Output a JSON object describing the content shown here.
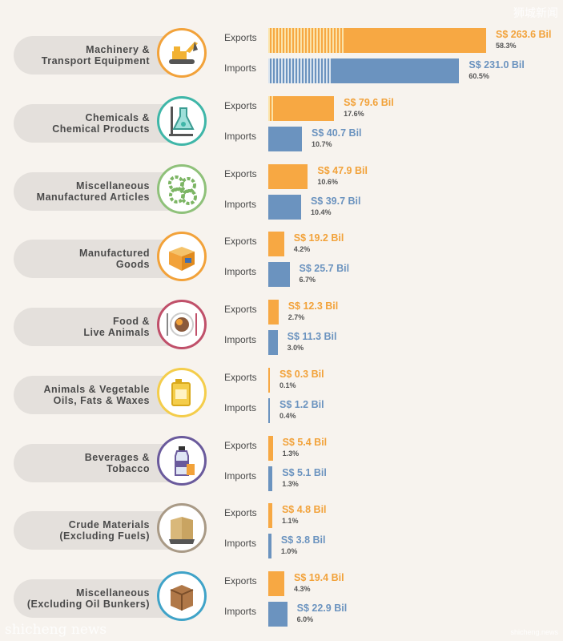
{
  "watermarks": {
    "top_right": "狮城新闻",
    "bottom_left": "shicheng news",
    "bottom_right": "shicheng.news"
  },
  "labels": {
    "exports": "Exports",
    "imports": "Imports"
  },
  "colors": {
    "exports": "#f7a843",
    "imports": "#6b93bf",
    "background": "#f7f3ee"
  },
  "chart_data": {
    "type": "bar",
    "orientation": "horizontal",
    "unit": "S$ Bil",
    "series_names": [
      "Exports",
      "Imports"
    ],
    "rows": [
      {
        "category": "Machinery &\nTransport Equipment",
        "icon": "excavator-icon",
        "ring": "#f2a23a",
        "exports": 263.6,
        "exports_text": "S$ 263.6 Bil",
        "exports_pct": "58.3%",
        "imports": 231.0,
        "imports_text": "S$ 231.0 Bil",
        "imports_pct": "60.5%",
        "exports_striped": 0.35,
        "imports_striped": 0.33
      },
      {
        "category": "Chemicals &\nChemical Products",
        "icon": "lab-flask-icon",
        "ring": "#3fb6a8",
        "exports": 79.6,
        "exports_text": "S$ 79.6 Bil",
        "exports_pct": "17.6%",
        "imports": 40.7,
        "imports_text": "S$ 40.7 Bil",
        "imports_pct": "10.7%",
        "exports_striped": 0.07,
        "imports_striped": 0
      },
      {
        "category": "Miscellaneous\nManufactured Articles",
        "icon": "gears-icon",
        "ring": "#8fc17a",
        "exports": 47.9,
        "exports_text": "S$ 47.9 Bil",
        "exports_pct": "10.6%",
        "imports": 39.7,
        "imports_text": "S$ 39.7 Bil",
        "imports_pct": "10.4%",
        "exports_striped": 0,
        "imports_striped": 0
      },
      {
        "category": "Manufactured\nGoods",
        "icon": "open-box-icon",
        "ring": "#f2a23a",
        "exports": 19.2,
        "exports_text": "S$ 19.2 Bil",
        "exports_pct": "4.2%",
        "imports": 25.7,
        "imports_text": "S$ 25.7 Bil",
        "imports_pct": "6.7%",
        "exports_striped": 0,
        "imports_striped": 0
      },
      {
        "category": "Food &\nLive Animals",
        "icon": "meal-plate-icon",
        "ring": "#c0506a",
        "exports": 12.3,
        "exports_text": "S$ 12.3 Bil",
        "exports_pct": "2.7%",
        "imports": 11.3,
        "imports_text": "S$ 11.3 Bil",
        "imports_pct": "3.0%",
        "exports_striped": 0,
        "imports_striped": 0
      },
      {
        "category": "Animals & Vegetable\nOils, Fats & Waxes",
        "icon": "oil-jug-icon",
        "ring": "#f4cd4b",
        "exports": 0.3,
        "exports_text": "S$ 0.3 Bil",
        "exports_pct": "0.1%",
        "imports": 1.2,
        "imports_text": "S$ 1.2 Bil",
        "imports_pct": "0.4%",
        "exports_striped": 0,
        "imports_striped": 0
      },
      {
        "category": "Beverages &\nTobacco",
        "icon": "bottle-icon",
        "ring": "#6a5a9c",
        "exports": 5.4,
        "exports_text": "S$ 5.4 Bil",
        "exports_pct": "1.3%",
        "imports": 5.1,
        "imports_text": "S$ 5.1 Bil",
        "imports_pct": "1.3%",
        "exports_striped": 0,
        "imports_striped": 0
      },
      {
        "category": "Crude Materials\n(Excluding Fuels)",
        "icon": "sacks-icon",
        "ring": "#a99a86",
        "exports": 4.8,
        "exports_text": "S$ 4.8 Bil",
        "exports_pct": "1.1%",
        "imports": 3.8,
        "imports_text": "S$ 3.8 Bil",
        "imports_pct": "1.0%",
        "exports_striped": 0,
        "imports_striped": 0
      },
      {
        "category": "Miscellaneous\n(Excluding Oil Bunkers)",
        "icon": "cardboard-box-icon",
        "ring": "#3fa3c8",
        "exports": 19.4,
        "exports_text": "S$ 19.4 Bil",
        "exports_pct": "4.3%",
        "imports": 22.9,
        "imports_text": "S$ 22.9 Bil",
        "imports_pct": "6.0%",
        "exports_striped": 0,
        "imports_striped": 0
      }
    ]
  }
}
